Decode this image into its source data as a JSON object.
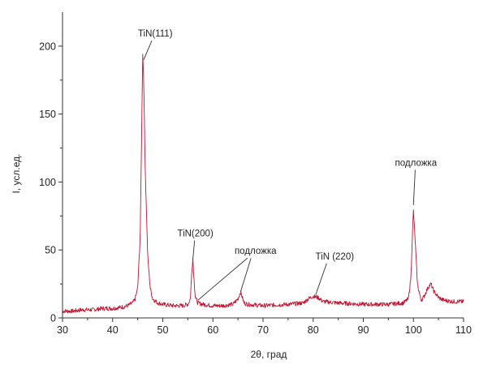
{
  "chart_data": {
    "type": "line",
    "title": "",
    "xlabel": "2θ, град",
    "ylabel": "I, усл.ед.",
    "xlim": [
      30,
      110
    ],
    "ylim": [
      0,
      225
    ],
    "xticks": [
      30,
      40,
      50,
      60,
      70,
      80,
      90,
      100,
      110
    ],
    "yticks": [
      0,
      50,
      100,
      150,
      200
    ],
    "grid": false,
    "legend": "none",
    "colors": {
      "line": "#c8102e",
      "axis": "#333333",
      "annotation": "#333333"
    },
    "series": [
      {
        "x": [
          30,
          32,
          34,
          36,
          38,
          40,
          42,
          43,
          44,
          44.5,
          45,
          45.5,
          45.8,
          46,
          46.2,
          46.5,
          47,
          47.5,
          48,
          49,
          50,
          52,
          54,
          55,
          55.5,
          55.8,
          56,
          56.2,
          56.5,
          57,
          58,
          60,
          62,
          64,
          65,
          65.5,
          65.8,
          66.2,
          67,
          70,
          75,
          78,
          79,
          80,
          81,
          82,
          85,
          90,
          95,
          98,
          99,
          99.5,
          99.8,
          100,
          100.3,
          100.8,
          101.5,
          102,
          103,
          103.5,
          104,
          105,
          106,
          108,
          110
        ],
        "y": [
          5,
          5,
          6,
          6,
          7,
          7,
          8,
          9,
          11,
          14,
          22,
          60,
          140,
          195,
          175,
          110,
          45,
          22,
          14,
          11,
          10,
          9,
          9,
          10,
          14,
          35,
          44,
          30,
          15,
          11,
          10,
          9,
          9,
          10,
          14,
          19,
          16,
          11,
          10,
          9,
          10,
          11,
          14,
          16,
          15,
          12,
          11,
          10,
          10,
          11,
          14,
          30,
          62,
          79,
          60,
          25,
          13,
          15,
          23,
          25,
          20,
          15,
          13,
          12,
          12
        ]
      }
    ],
    "annotations": [
      {
        "text": "TiN(111)",
        "x": 48.5,
        "y": 207,
        "arrow_to": [
          46.2,
          190
        ]
      },
      {
        "text": "TiN(200)",
        "x": 56.5,
        "y": 60,
        "arrow_to": [
          56.0,
          43
        ]
      },
      {
        "text": "подложка",
        "x": 68.5,
        "y": 47,
        "arrow_to": [
          [
            57,
            13
          ],
          [
            65.5,
            19
          ]
        ]
      },
      {
        "text": "TiN (220)",
        "x": 84.3,
        "y": 43,
        "arrow_to": [
          80.5,
          17
        ]
      },
      {
        "text": "подложка",
        "x": 100.5,
        "y": 112,
        "arrow_to": [
          100.0,
          83
        ]
      }
    ]
  }
}
